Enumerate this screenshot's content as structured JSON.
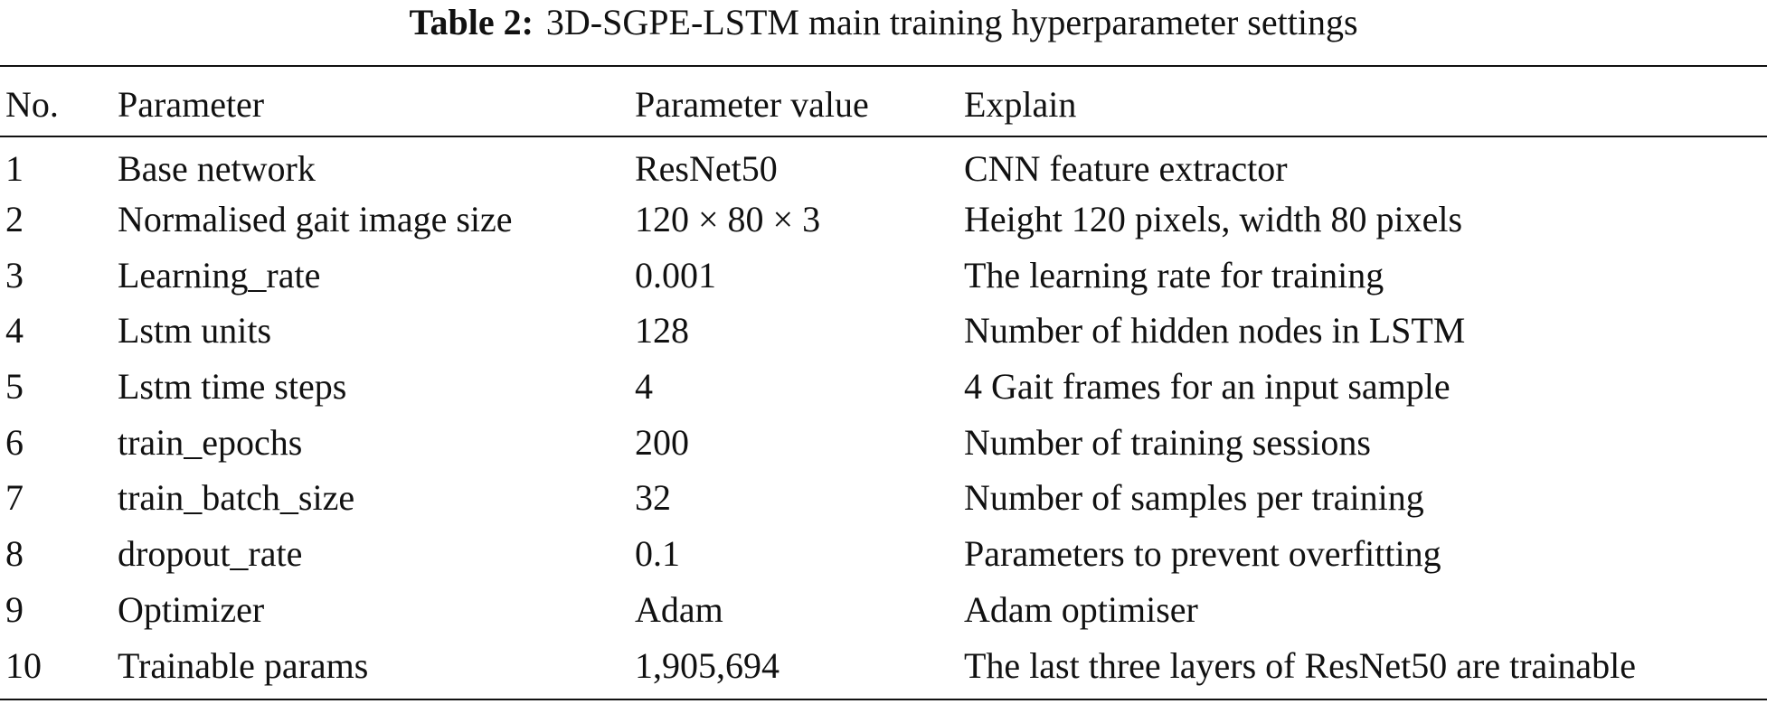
{
  "caption": {
    "label": "Table 2:",
    "text": "3D-SGPE-LSTM main training hyperparameter settings"
  },
  "table": {
    "headers": {
      "no": "No.",
      "parameter": "Parameter",
      "value": "Parameter value",
      "explain": "Explain"
    },
    "rows": [
      {
        "no": "1",
        "parameter": "Base network",
        "value": "ResNet50",
        "explain": "CNN feature extractor"
      },
      {
        "no": "2",
        "parameter": "Normalised gait image size",
        "value": "120 × 80 × 3",
        "explain": "Height 120 pixels, width 80 pixels"
      },
      {
        "no": "3",
        "parameter": "Learning_rate",
        "value": "0.001",
        "explain": "The learning rate for training"
      },
      {
        "no": "4",
        "parameter": "Lstm units",
        "value": "128",
        "explain": "Number of hidden nodes in LSTM"
      },
      {
        "no": "5",
        "parameter": "Lstm time steps",
        "value": "4",
        "explain": "4 Gait frames for an input sample"
      },
      {
        "no": "6",
        "parameter": "train_epochs",
        "value": "200",
        "explain": "Number of training sessions"
      },
      {
        "no": "7",
        "parameter": "train_batch_size",
        "value": "32",
        "explain": "Number of samples per training"
      },
      {
        "no": "8",
        "parameter": "dropout_rate",
        "value": "0.1",
        "explain": "Parameters to prevent overfitting"
      },
      {
        "no": "9",
        "parameter": "Optimizer",
        "value": "Adam",
        "explain": "Adam optimiser"
      },
      {
        "no": "10",
        "parameter": "Trainable params",
        "value": "1,905,694",
        "explain": "The last three layers of ResNet50 are trainable"
      }
    ]
  }
}
